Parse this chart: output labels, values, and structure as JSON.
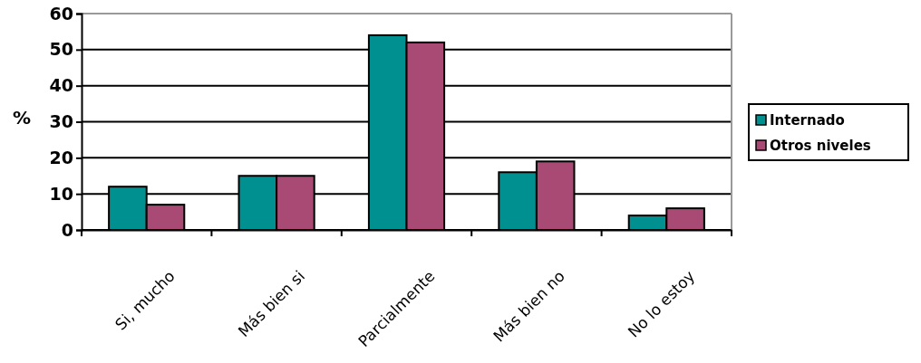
{
  "chart_data": {
    "type": "bar",
    "ylabel": "%",
    "categories": [
      "Si, mucho",
      "Más bien si",
      "Parcialmente",
      "Más bien no",
      "No lo estoy"
    ],
    "series": [
      {
        "name": "Internado",
        "color": "#009090",
        "values": [
          12,
          15,
          54,
          16,
          4
        ]
      },
      {
        "name": "Otros niveles",
        "color": "#a84a74",
        "values": [
          7,
          15,
          52,
          19,
          6
        ]
      }
    ],
    "ylim": [
      0,
      60
    ],
    "yticks": [
      0,
      10,
      20,
      30,
      40,
      50,
      60
    ],
    "grid": "y",
    "legend": "right"
  }
}
